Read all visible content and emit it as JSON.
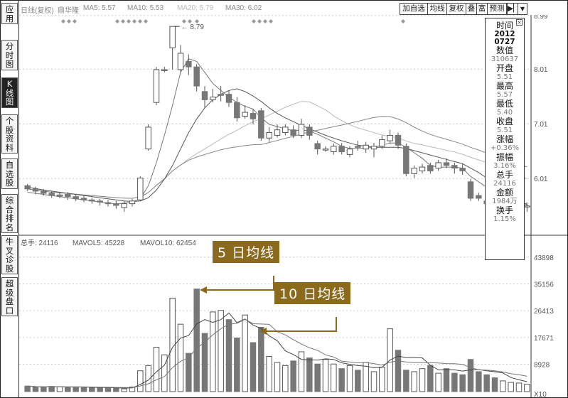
{
  "sidebar": {
    "tabs": [
      {
        "label": [
          "应",
          "用"
        ],
        "active": false
      },
      {
        "label": [
          "分",
          "时",
          "图"
        ],
        "active": false
      },
      {
        "label": [
          "K",
          "线",
          "图"
        ],
        "active": true
      },
      {
        "label": [
          "个",
          "股",
          "资",
          "料"
        ],
        "active": false
      },
      {
        "label": [
          "自",
          "选",
          "股"
        ],
        "active": false
      },
      {
        "label": [
          "综",
          "合",
          "排",
          "名"
        ],
        "active": false
      },
      {
        "label": [
          "牛",
          "叉",
          "诊",
          "股"
        ],
        "active": false
      },
      {
        "label": [
          "超",
          "级",
          "盘",
          "口"
        ],
        "active": false
      }
    ]
  },
  "header": {
    "chart_title": "日线(复权)",
    "stock_name": "鼎华隆",
    "ma5": "MA5: 5.57",
    "ma10": "MA10: 5.53",
    "ma20": "MA20: 5.79",
    "ma30": "MA30: 6.02",
    "buttons": [
      "加自选",
      "均线",
      "复权",
      "叠",
      "富",
      "预测"
    ],
    "nav_icons": [
      "pin-left-icon",
      "chevron-down-icon"
    ]
  },
  "price_axis": {
    "ticks": [
      "8.99",
      "8.01",
      "7.01",
      "6.01"
    ],
    "high_label": "8.79",
    "low_label": "5.2"
  },
  "volume_panel": {
    "total_label": "总手: 24116",
    "mavol5": "MAVOL5: 45228",
    "mavol10": "MAVOL10: 62454",
    "ticks": [
      "43898",
      "35156",
      "26413",
      "17671",
      "8928"
    ],
    "unit": "X10"
  },
  "info_panel": {
    "time_label": "时间",
    "date_year": "2012",
    "date_md": "0727",
    "value_label": "数值",
    "value": "310637",
    "rows": [
      {
        "label": "开盘",
        "value": "5.51"
      },
      {
        "label": "最高",
        "value": "5.57"
      },
      {
        "label": "最低",
        "value": "5.40"
      },
      {
        "label": "收盘",
        "value": "5.51"
      },
      {
        "label": "涨幅",
        "value": "+0.36%"
      },
      {
        "label": "振幅",
        "value": "3.16%"
      },
      {
        "label": "总手",
        "value": "24116"
      },
      {
        "label": "金额",
        "value": "1984万"
      },
      {
        "label": "换手",
        "value": "1.15%"
      }
    ]
  },
  "annotations": {
    "ma5_callout": "5 日均线",
    "ma10_callout": "10 日均线"
  },
  "colors": {
    "callout": "#8B6A1E",
    "candle_down": "#777777",
    "candle_up_border": "#555555"
  },
  "chart_data": {
    "type": "candlestick",
    "price_range": [
      5.0,
      9.0
    ],
    "candles": [
      [
        5.88,
        5.82,
        5.91,
        5.78
      ],
      [
        5.82,
        5.78,
        5.86,
        5.72
      ],
      [
        5.78,
        5.74,
        5.82,
        5.7
      ],
      [
        5.74,
        5.7,
        5.78,
        5.66
      ],
      [
        5.7,
        5.71,
        5.75,
        5.65
      ],
      [
        5.72,
        5.68,
        5.76,
        5.62
      ],
      [
        5.68,
        5.64,
        5.72,
        5.6
      ],
      [
        5.65,
        5.62,
        5.7,
        5.58
      ],
      [
        5.62,
        5.6,
        5.66,
        5.55
      ],
      [
        5.6,
        5.58,
        5.64,
        5.52
      ],
      [
        5.57,
        5.55,
        5.62,
        5.5
      ],
      [
        5.55,
        5.52,
        5.6,
        5.46
      ],
      [
        5.48,
        5.55,
        5.6,
        5.4
      ],
      [
        5.55,
        5.6,
        5.64,
        5.5
      ],
      [
        5.62,
        6.02,
        6.05,
        5.6
      ],
      [
        6.55,
        6.95,
        7.0,
        6.52
      ],
      [
        7.4,
        8.0,
        8.05,
        7.35
      ],
      [
        8.0,
        8.0,
        8.05,
        7.95
      ],
      [
        8.4,
        8.79,
        8.79,
        8.0
      ],
      [
        8.0,
        8.3,
        8.45,
        7.95
      ],
      [
        8.15,
        8.05,
        8.28,
        7.9
      ],
      [
        8.05,
        7.7,
        8.1,
        7.6
      ],
      [
        7.6,
        7.45,
        7.7,
        7.3
      ],
      [
        7.45,
        7.5,
        7.65,
        7.4
      ],
      [
        7.55,
        7.55,
        7.7,
        7.42
      ],
      [
        7.55,
        7.4,
        7.62,
        7.32
      ],
      [
        7.4,
        7.12,
        7.5,
        7.05
      ],
      [
        7.15,
        7.22,
        7.35,
        7.1
      ],
      [
        7.2,
        7.1,
        7.28,
        7.0
      ],
      [
        7.25,
        6.75,
        7.3,
        6.7
      ],
      [
        6.75,
        6.85,
        6.95,
        6.68
      ],
      [
        6.8,
        6.9,
        7.0,
        6.76
      ],
      [
        6.85,
        6.95,
        7.0,
        6.8
      ],
      [
        6.9,
        6.8,
        6.98,
        6.75
      ],
      [
        6.8,
        7.0,
        7.1,
        6.75
      ],
      [
        6.95,
        6.8,
        7.0,
        6.72
      ],
      [
        6.65,
        6.55,
        6.7,
        6.45
      ],
      [
        6.55,
        6.55,
        6.6,
        6.5
      ],
      [
        6.5,
        6.6,
        6.65,
        6.45
      ],
      [
        6.6,
        6.5,
        6.66,
        6.45
      ],
      [
        6.45,
        6.55,
        6.6,
        6.4
      ],
      [
        6.6,
        6.58,
        6.7,
        6.52
      ],
      [
        6.55,
        6.62,
        6.68,
        6.48
      ],
      [
        6.55,
        6.6,
        6.66,
        6.4
      ],
      [
        6.6,
        6.72,
        6.8,
        6.55
      ],
      [
        6.7,
        6.8,
        6.9,
        6.65
      ],
      [
        6.8,
        6.62,
        6.85,
        6.55
      ],
      [
        6.6,
        6.1,
        6.65,
        6.05
      ],
      [
        6.1,
        6.2,
        6.25,
        6.02
      ],
      [
        6.15,
        6.22,
        6.28,
        6.1
      ],
      [
        6.25,
        6.15,
        6.3,
        6.1
      ],
      [
        6.2,
        6.3,
        6.35,
        6.15
      ],
      [
        6.3,
        6.25,
        6.38,
        6.2
      ],
      [
        6.25,
        6.2,
        6.3,
        6.1
      ],
      [
        6.2,
        6.15,
        6.28,
        6.08
      ],
      [
        5.95,
        5.65,
        6.0,
        5.6
      ],
      [
        5.7,
        5.65,
        5.75,
        5.6
      ],
      [
        5.6,
        5.55,
        5.7,
        5.45
      ],
      [
        5.6,
        5.2,
        5.65,
        5.15
      ],
      [
        5.25,
        5.35,
        5.42,
        5.18
      ],
      [
        5.35,
        5.4,
        5.45,
        5.28
      ],
      [
        5.4,
        5.5,
        5.57,
        5.35
      ],
      [
        5.51,
        5.51,
        5.57,
        5.4
      ]
    ],
    "volumes": [
      1800,
      1500,
      1400,
      1700,
      1600,
      1300,
      1500,
      1400,
      1300,
      1200,
      1300,
      1100,
      900,
      1500,
      6800,
      8500,
      14500,
      12000,
      30500,
      22000,
      12500,
      33500,
      19000,
      26000,
      26500,
      23500,
      17500,
      25000,
      16000,
      21000,
      11500,
      9500,
      8500,
      10000,
      13000,
      11000,
      9000,
      10500,
      9000,
      7500,
      8500,
      7000,
      9500,
      6500,
      8000,
      20500,
      13500,
      7000,
      6500,
      7500,
      8500,
      6000,
      7500,
      6000,
      5500,
      10500,
      6500,
      5500,
      4500,
      3500,
      3000,
      2800,
      2412
    ],
    "ma5": [
      5.76,
      5.74,
      5.72,
      5.7,
      5.68,
      5.66,
      5.64,
      5.62,
      5.6,
      5.58,
      5.56,
      5.55,
      5.56,
      5.58,
      5.64,
      5.88,
      6.3,
      6.8,
      7.35,
      7.95,
      8.2,
      8.15,
      7.95,
      7.75,
      7.62,
      7.5,
      7.4,
      7.33,
      7.28,
      7.12,
      7.0,
      6.96,
      6.92,
      6.88,
      6.9,
      6.88,
      6.82,
      6.75,
      6.68,
      6.6,
      6.56,
      6.56,
      6.57,
      6.58,
      6.62,
      6.66,
      6.66,
      6.58,
      6.48,
      6.38,
      6.25,
      6.22,
      6.22,
      6.22,
      6.2,
      6.05,
      5.95,
      5.85,
      5.65,
      5.5,
      5.45,
      5.42,
      5.57
    ],
    "ma10": [
      5.85,
      5.83,
      5.8,
      5.78,
      5.76,
      5.74,
      5.72,
      5.7,
      5.68,
      5.66,
      5.64,
      5.62,
      5.6,
      5.59,
      5.6,
      5.66,
      5.8,
      6.0,
      6.25,
      6.55,
      6.85,
      7.1,
      7.3,
      7.45,
      7.55,
      7.62,
      7.65,
      7.6,
      7.52,
      7.42,
      7.3,
      7.2,
      7.12,
      7.05,
      6.98,
      6.92,
      6.86,
      6.8,
      6.75,
      6.7,
      6.66,
      6.62,
      6.6,
      6.58,
      6.58,
      6.58,
      6.58,
      6.56,
      6.52,
      6.48,
      6.44,
      6.4,
      6.36,
      6.32,
      6.28,
      6.2,
      6.12,
      6.02,
      5.92,
      5.82,
      5.72,
      5.62,
      5.53
    ]
  }
}
